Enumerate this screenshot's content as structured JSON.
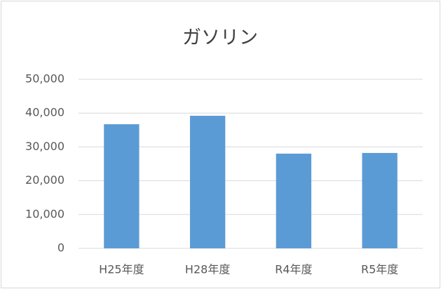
{
  "chart_data": {
    "type": "bar",
    "title": "ガソリン",
    "categories": [
      "H25年度",
      "H28年度",
      "R4年度",
      "R5年度"
    ],
    "values": [
      36700,
      39200,
      28000,
      28200
    ],
    "color": "#5b9bd5",
    "ylim": [
      0,
      50000
    ],
    "yticks": [
      0,
      {
        "value": 10000,
        "label": "10,000"
      },
      {
        "value": 20000,
        "label": "20,000"
      },
      {
        "value": 30000,
        "label": "30,000"
      },
      {
        "value": 40000,
        "label": "40,000"
      },
      {
        "value": 50000,
        "label": "50,000"
      }
    ],
    "grid": true
  }
}
